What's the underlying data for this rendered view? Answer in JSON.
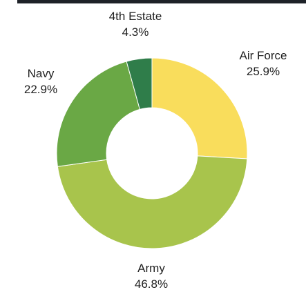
{
  "chart_data": {
    "type": "pie",
    "donut": true,
    "title": "",
    "categories": [
      "Air Force",
      "Army",
      "Navy",
      "4th Estate"
    ],
    "values": [
      25.9,
      46.8,
      22.9,
      4.3
    ],
    "value_labels": [
      "25.9%",
      "46.8%",
      "22.9%",
      "4.3%"
    ],
    "colors": [
      "#f9dd5c",
      "#a8c44c",
      "#6aa845",
      "#2f7d4a"
    ],
    "legend": "none",
    "start_angle_deg": 0,
    "direction": "clockwise"
  }
}
